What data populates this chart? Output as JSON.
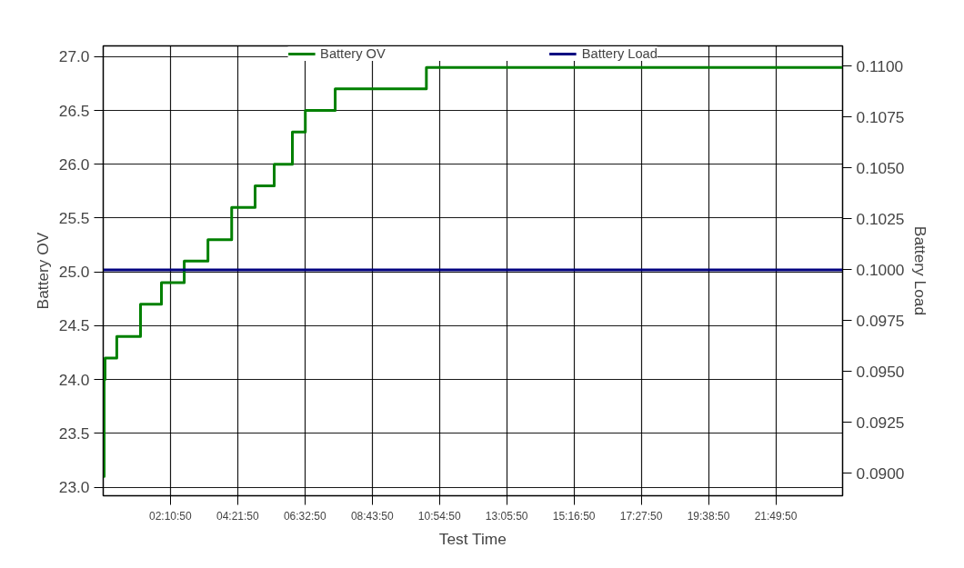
{
  "chart_data": {
    "type": "step",
    "xlabel": "Test Time",
    "ylabel": "Battery OV",
    "y2label": "Battery Load",
    "xlim": [
      0,
      24
    ],
    "ylim": [
      22.92,
      27.1
    ],
    "y2lim": [
      0.0889,
      0.111
    ],
    "xticks": [
      {
        "value": 2.18056,
        "label": "02:10:50"
      },
      {
        "value": 4.36389,
        "label": "04:21:50"
      },
      {
        "value": 6.54722,
        "label": "06:32:50"
      },
      {
        "value": 8.73056,
        "label": "08:43:50"
      },
      {
        "value": 10.91389,
        "label": "10:54:50"
      },
      {
        "value": 13.09722,
        "label": "13:05:50"
      },
      {
        "value": 15.28056,
        "label": "15:16:50"
      },
      {
        "value": 17.46389,
        "label": "17:27:50"
      },
      {
        "value": 19.64722,
        "label": "19:38:50"
      },
      {
        "value": 21.83056,
        "label": "21:49:50"
      }
    ],
    "yticks": [
      {
        "value": 23,
        "label": "23.0"
      },
      {
        "value": 23.5,
        "label": "23.5"
      },
      {
        "value": 24,
        "label": "24.0"
      },
      {
        "value": 24.5,
        "label": "24.5"
      },
      {
        "value": 25,
        "label": "25.0"
      },
      {
        "value": 25.5,
        "label": "25.5"
      },
      {
        "value": 26,
        "label": "26.0"
      },
      {
        "value": 26.5,
        "label": "26.5"
      },
      {
        "value": 27,
        "label": "27.0"
      }
    ],
    "y2ticks": [
      {
        "value": 0.09,
        "label": "0.0900"
      },
      {
        "value": 0.0925,
        "label": "0.0925"
      },
      {
        "value": 0.095,
        "label": "0.0950"
      },
      {
        "value": 0.0975,
        "label": "0.0975"
      },
      {
        "value": 0.1,
        "label": "0.1000"
      },
      {
        "value": 0.1025,
        "label": "0.1025"
      },
      {
        "value": 0.105,
        "label": "0.1050"
      },
      {
        "value": 0.1075,
        "label": "0.1075"
      },
      {
        "value": 0.11,
        "label": "0.1100"
      }
    ],
    "grid": true,
    "legend": "top",
    "series": [
      {
        "name": "Battery OV",
        "color": "#008000",
        "x": [
          0,
          0.03,
          0.06,
          0.44,
          1.21,
          1.89,
          2.63,
          3.4,
          4.17,
          4.93,
          5.55,
          6.14,
          6.56,
          7.53,
          10.49,
          24
        ],
        "values": [
          23.1,
          24.0,
          24.2,
          24.4,
          24.7,
          24.9,
          25.1,
          25.3,
          25.6,
          25.8,
          26.0,
          26.3,
          26.5,
          26.7,
          26.9,
          26.9
        ]
      },
      {
        "name": "Battery Load",
        "color": "#000080",
        "axis": "y2",
        "x": [
          0,
          24
        ],
        "values": [
          0.1,
          0.1
        ]
      }
    ]
  }
}
